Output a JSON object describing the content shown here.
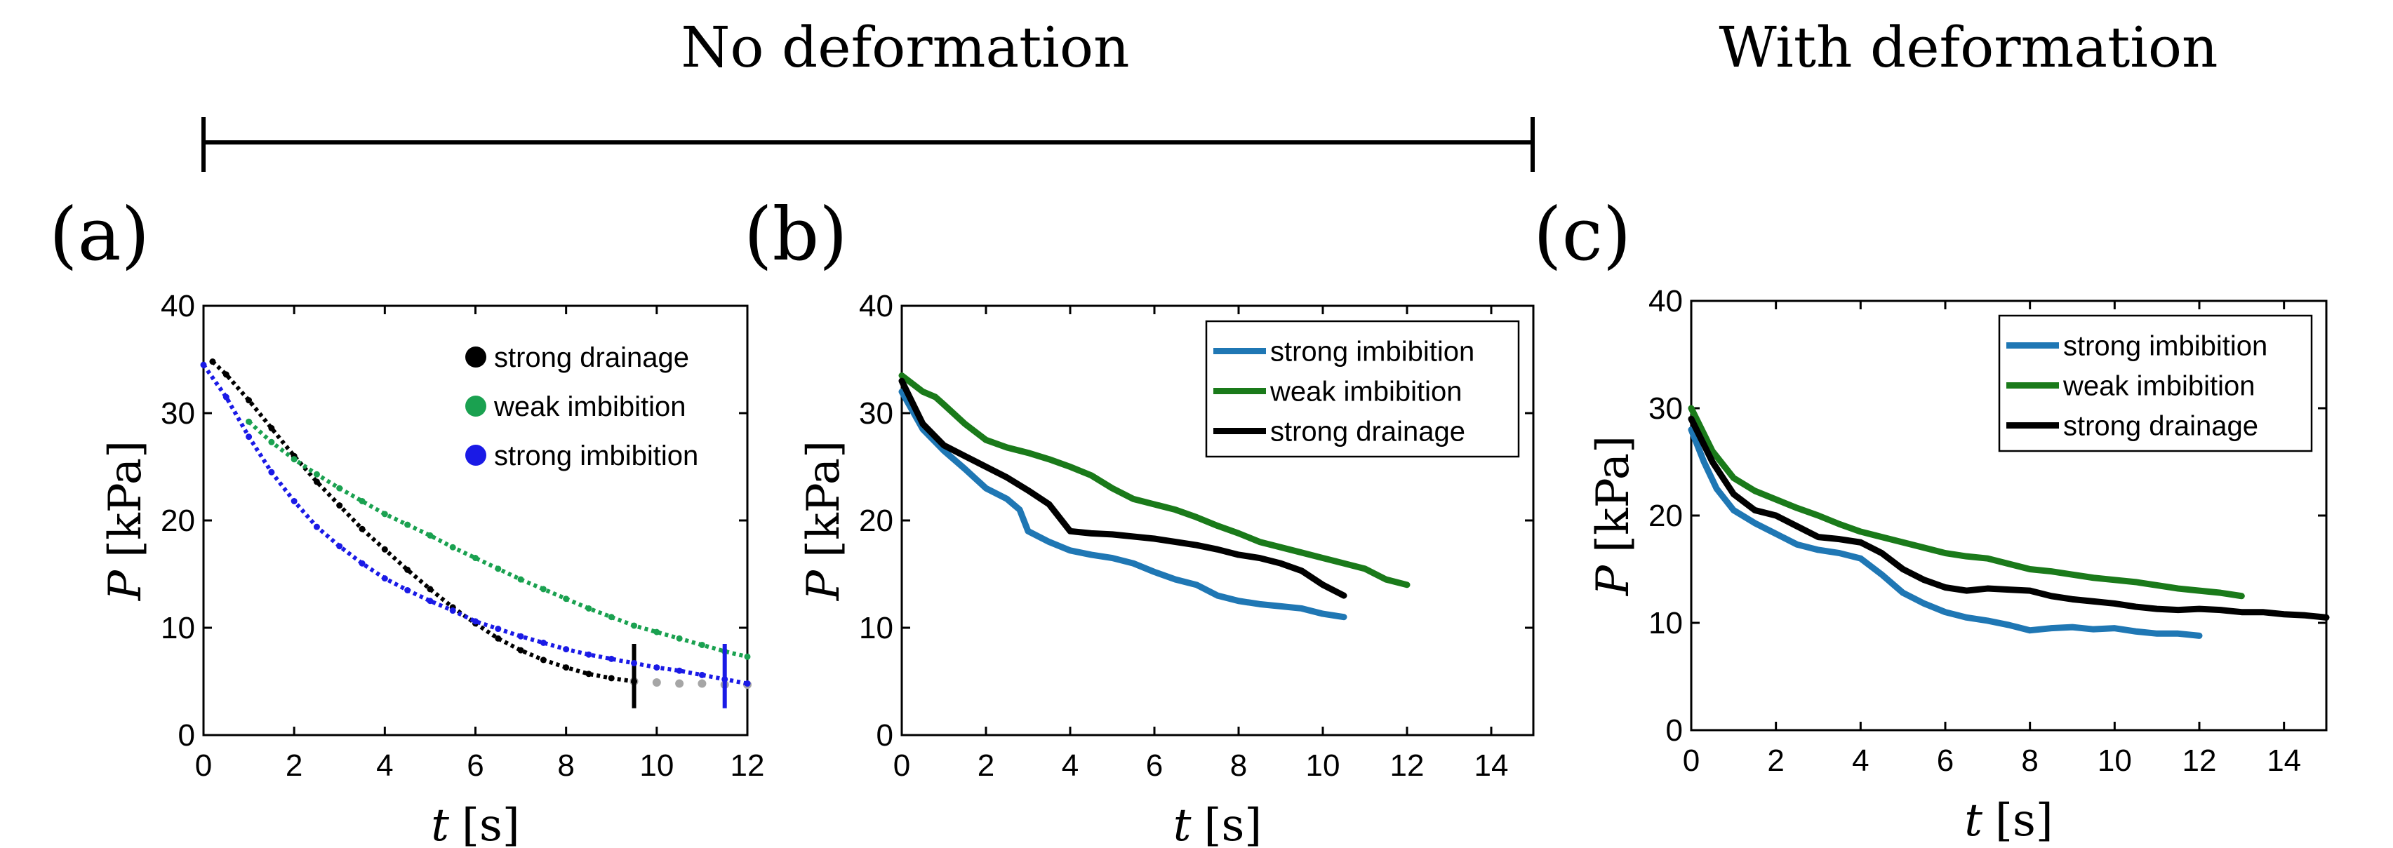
{
  "headings": {
    "left": "No deformation",
    "right": "With deformation"
  },
  "chart_data": [
    {
      "panel": "(a)",
      "type": "scatter",
      "xlabel_var": "t",
      "xlabel_unit": "[s]",
      "ylabel_var": "P",
      "ylabel_unit": "[kPa]",
      "xlim": [
        0,
        12
      ],
      "ylim": [
        0,
        40
      ],
      "xticks": [
        "0",
        "2",
        "4",
        "6",
        "8",
        "10",
        "12"
      ],
      "yticks": [
        "0",
        "10",
        "20",
        "30",
        "40"
      ],
      "legend_position": "top-right",
      "series": [
        {
          "name": "strong drainage",
          "color": "#000000",
          "tail_color": "#a6a6a6",
          "end_marker_x": 9.5,
          "x": [
            0.2,
            0.5,
            1.0,
            1.5,
            2.0,
            2.5,
            3.0,
            3.5,
            4.0,
            4.5,
            5.0,
            5.5,
            6.0,
            6.5,
            7.0,
            7.5,
            8.0,
            8.5,
            9.0,
            9.5
          ],
          "y": [
            34.8,
            33.6,
            31.2,
            28.6,
            26.0,
            23.6,
            21.4,
            19.2,
            17.3,
            15.4,
            13.6,
            11.9,
            10.4,
            9.0,
            7.9,
            7.0,
            6.3,
            5.7,
            5.3,
            5.0
          ],
          "tail_x": [
            9.5,
            10.0,
            10.5,
            11.0,
            11.5,
            12.0
          ],
          "tail_y": [
            5.0,
            4.9,
            4.8,
            4.8,
            4.7,
            4.7
          ]
        },
        {
          "name": "weak imbibition",
          "color": "#1aa150",
          "x": [
            1.0,
            1.5,
            2.0,
            2.5,
            3.0,
            3.5,
            4.0,
            4.5,
            5.0,
            5.5,
            6.0,
            6.5,
            7.0,
            7.5,
            8.0,
            8.5,
            9.0,
            9.5,
            10.0,
            10.5,
            11.0,
            11.5,
            12.0
          ],
          "y": [
            29.2,
            27.3,
            25.7,
            24.3,
            23.0,
            21.8,
            20.6,
            19.6,
            18.6,
            17.5,
            16.5,
            15.5,
            14.5,
            13.6,
            12.7,
            11.8,
            11.0,
            10.2,
            9.6,
            9.0,
            8.4,
            7.8,
            7.3
          ]
        },
        {
          "name": "strong imbibition",
          "color": "#1a1ae6",
          "end_marker_x": 11.5,
          "x": [
            0.0,
            0.5,
            1.0,
            1.5,
            2.0,
            2.5,
            3.0,
            3.5,
            4.0,
            4.5,
            5.0,
            5.5,
            6.0,
            6.5,
            7.0,
            7.5,
            8.0,
            8.5,
            9.0,
            9.5,
            10.0,
            10.5,
            11.0,
            11.5,
            12.0
          ],
          "y": [
            34.5,
            31.5,
            27.8,
            24.5,
            21.8,
            19.4,
            17.6,
            16.0,
            14.6,
            13.5,
            12.5,
            11.6,
            10.6,
            9.9,
            9.2,
            8.6,
            8.0,
            7.5,
            7.1,
            6.7,
            6.3,
            6.0,
            5.6,
            5.2,
            4.8
          ]
        }
      ]
    },
    {
      "panel": "(b)",
      "type": "line",
      "xlabel_var": "t",
      "xlabel_unit": "[s]",
      "ylabel_var": "P",
      "ylabel_unit": "[kPa]",
      "xlim": [
        0,
        15
      ],
      "ylim": [
        0,
        40
      ],
      "xticks": [
        "0",
        "2",
        "4",
        "6",
        "8",
        "10",
        "12",
        "14"
      ],
      "yticks": [
        "0",
        "10",
        "20",
        "30",
        "40"
      ],
      "legend_position": "top-right",
      "series": [
        {
          "name": "strong imbibition",
          "color": "#1f77b4",
          "x": [
            0.0,
            0.5,
            1.0,
            1.5,
            2.0,
            2.5,
            2.8,
            3.0,
            3.5,
            4.0,
            4.5,
            5.0,
            5.5,
            6.0,
            6.5,
            7.0,
            7.5,
            8.0,
            8.5,
            9.0,
            9.5,
            10.0,
            10.5
          ],
          "y": [
            32.0,
            28.5,
            26.5,
            24.8,
            23.0,
            22.0,
            21.0,
            19.0,
            18.0,
            17.2,
            16.8,
            16.5,
            16.0,
            15.2,
            14.5,
            14.0,
            13.0,
            12.5,
            12.2,
            12.0,
            11.8,
            11.3,
            11.0
          ]
        },
        {
          "name": "weak imbibition",
          "color": "#1a7a1a",
          "x": [
            0.0,
            0.5,
            0.8,
            1.0,
            1.5,
            2.0,
            2.5,
            3.0,
            3.5,
            4.0,
            4.5,
            5.0,
            5.5,
            6.0,
            6.5,
            7.0,
            7.5,
            8.0,
            8.5,
            9.0,
            9.5,
            10.0,
            10.5,
            11.0,
            11.5,
            12.0
          ],
          "y": [
            33.5,
            32.0,
            31.5,
            30.8,
            29.0,
            27.5,
            26.8,
            26.3,
            25.7,
            25.0,
            24.2,
            23.0,
            22.0,
            21.5,
            21.0,
            20.3,
            19.5,
            18.8,
            18.0,
            17.5,
            17.0,
            16.5,
            16.0,
            15.5,
            14.5,
            14.0
          ]
        },
        {
          "name": "strong drainage",
          "color": "#000000",
          "x": [
            0.0,
            0.5,
            1.0,
            1.5,
            2.0,
            2.5,
            3.0,
            3.5,
            4.0,
            4.5,
            5.0,
            5.5,
            6.0,
            6.5,
            7.0,
            7.5,
            8.0,
            8.5,
            9.0,
            9.5,
            10.0,
            10.5
          ],
          "y": [
            33.0,
            29.0,
            27.0,
            26.0,
            25.0,
            24.0,
            22.8,
            21.5,
            19.0,
            18.8,
            18.7,
            18.5,
            18.3,
            18.0,
            17.7,
            17.3,
            16.8,
            16.5,
            16.0,
            15.3,
            14.0,
            13.0
          ]
        }
      ]
    },
    {
      "panel": "(c)",
      "type": "line",
      "xlabel_var": "t",
      "xlabel_unit": "[s]",
      "ylabel_var": "P",
      "ylabel_unit": "[kPa]",
      "xlim": [
        0,
        15
      ],
      "ylim": [
        0,
        40
      ],
      "xticks": [
        "0",
        "2",
        "4",
        "6",
        "8",
        "10",
        "12",
        "14"
      ],
      "yticks": [
        "0",
        "10",
        "20",
        "30",
        "40"
      ],
      "legend_position": "top-right",
      "series": [
        {
          "name": "strong imbibition",
          "color": "#1f77b4",
          "x": [
            0.0,
            0.3,
            0.6,
            1.0,
            1.5,
            2.0,
            2.5,
            3.0,
            3.5,
            4.0,
            4.5,
            5.0,
            5.5,
            6.0,
            6.5,
            7.0,
            7.5,
            8.0,
            8.5,
            9.0,
            9.5,
            10.0,
            10.5,
            11.0,
            11.5,
            12.0
          ],
          "y": [
            28.0,
            25.0,
            22.5,
            20.5,
            19.3,
            18.3,
            17.3,
            16.8,
            16.5,
            16.0,
            14.5,
            12.8,
            11.8,
            11.0,
            10.5,
            10.2,
            9.8,
            9.3,
            9.5,
            9.6,
            9.4,
            9.5,
            9.2,
            9.0,
            9.0,
            8.8
          ]
        },
        {
          "name": "weak imbibition",
          "color": "#1a7a1a",
          "x": [
            0.0,
            0.5,
            1.0,
            1.5,
            2.0,
            2.5,
            3.0,
            3.5,
            4.0,
            4.5,
            5.0,
            5.5,
            6.0,
            6.5,
            7.0,
            7.5,
            8.0,
            8.5,
            9.0,
            9.5,
            10.0,
            10.5,
            11.0,
            11.5,
            12.0,
            12.5,
            13.0
          ],
          "y": [
            30.0,
            26.0,
            23.5,
            22.3,
            21.5,
            20.7,
            20.0,
            19.2,
            18.5,
            18.0,
            17.5,
            17.0,
            16.5,
            16.2,
            16.0,
            15.5,
            15.0,
            14.8,
            14.5,
            14.2,
            14.0,
            13.8,
            13.5,
            13.2,
            13.0,
            12.8,
            12.5
          ]
        },
        {
          "name": "strong drainage",
          "color": "#000000",
          "x": [
            0.0,
            0.5,
            1.0,
            1.5,
            2.0,
            2.5,
            3.0,
            3.5,
            4.0,
            4.5,
            5.0,
            5.5,
            6.0,
            6.5,
            7.0,
            7.5,
            8.0,
            8.5,
            9.0,
            9.5,
            10.0,
            10.5,
            11.0,
            11.5,
            12.0,
            12.5,
            13.0,
            13.5,
            14.0,
            14.5,
            15.0
          ],
          "y": [
            29.0,
            25.0,
            22.0,
            20.5,
            20.0,
            19.0,
            18.0,
            17.8,
            17.5,
            16.5,
            15.0,
            14.0,
            13.3,
            13.0,
            13.2,
            13.1,
            13.0,
            12.5,
            12.2,
            12.0,
            11.8,
            11.5,
            11.3,
            11.2,
            11.3,
            11.2,
            11.0,
            11.0,
            10.8,
            10.7,
            10.5
          ]
        }
      ]
    }
  ]
}
